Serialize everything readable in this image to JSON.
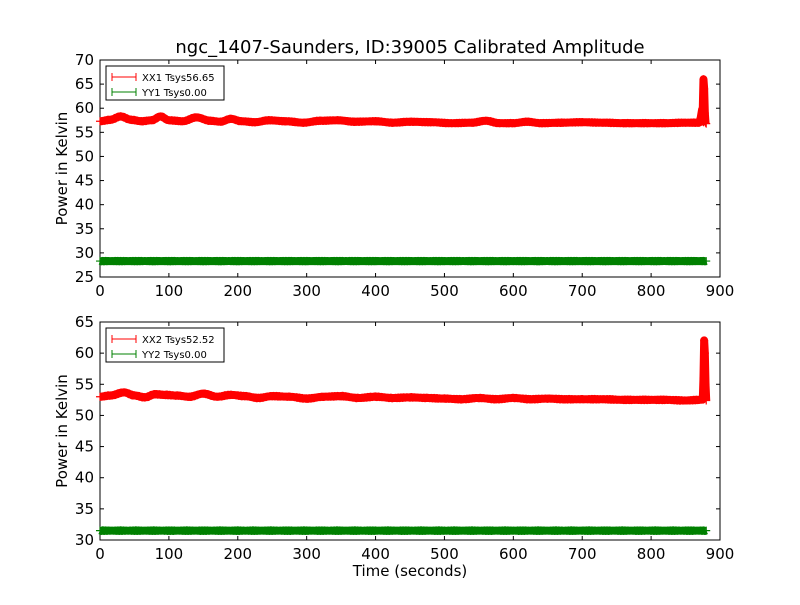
{
  "figure": {
    "title": "ngc_1407-Saunders, ID:39005 Calibrated Amplitude",
    "xlabel": "Time (seconds)"
  },
  "chart_data": [
    {
      "type": "line",
      "title": "ngc_1407-Saunders, ID:39005 Calibrated Amplitude",
      "xlabel": "",
      "ylabel": "Power in Kelvin",
      "xlim": [
        0,
        900
      ],
      "ylim": [
        25,
        70
      ],
      "xticks": [
        0,
        100,
        200,
        300,
        400,
        500,
        600,
        700,
        800,
        900
      ],
      "yticks": [
        25,
        30,
        35,
        40,
        45,
        50,
        55,
        60,
        65,
        70
      ],
      "grid": false,
      "legend_position": "top-left",
      "series": [
        {
          "name": "XX1 Tsys56.65",
          "color": "#ff0000",
          "marker": "+",
          "x": [
            0,
            15,
            30,
            45,
            60,
            75,
            88,
            100,
            120,
            140,
            160,
            175,
            190,
            205,
            225,
            245,
            270,
            295,
            320,
            345,
            370,
            400,
            425,
            450,
            480,
            510,
            540,
            560,
            580,
            600,
            620,
            640,
            670,
            700,
            730,
            760,
            790,
            820,
            850,
            870,
            875,
            876,
            877,
            878,
            879,
            880
          ],
          "y": [
            57.3,
            57.6,
            58.3,
            57.6,
            57.3,
            57.5,
            58.3,
            57.5,
            57.3,
            58.1,
            57.4,
            57.2,
            57.8,
            57.3,
            57.1,
            57.5,
            57.3,
            57.0,
            57.4,
            57.5,
            57.2,
            57.3,
            57.0,
            57.2,
            57.1,
            56.9,
            57.0,
            57.4,
            56.9,
            56.9,
            57.2,
            56.9,
            57.0,
            57.1,
            57.0,
            56.9,
            56.9,
            56.9,
            57.0,
            57.0,
            60.0,
            66.0,
            64.0,
            59.0,
            57.0,
            56.8
          ]
        },
        {
          "name": "YY1 Tsys0.00",
          "color": "#008000",
          "marker": "+",
          "x": [
            0,
            100,
            200,
            300,
            400,
            500,
            600,
            700,
            800,
            880
          ],
          "y": [
            28.3,
            28.3,
            28.3,
            28.3,
            28.3,
            28.3,
            28.3,
            28.3,
            28.3,
            28.3
          ]
        }
      ]
    },
    {
      "type": "line",
      "title": "",
      "xlabel": "Time (seconds)",
      "ylabel": "Power in Kelvin",
      "xlim": [
        0,
        900
      ],
      "ylim": [
        30,
        65
      ],
      "xticks": [
        0,
        100,
        200,
        300,
        400,
        500,
        600,
        700,
        800,
        900
      ],
      "yticks": [
        30,
        35,
        40,
        45,
        50,
        55,
        60,
        65
      ],
      "grid": false,
      "legend_position": "top-left",
      "series": [
        {
          "name": "XX2 Tsys52.52",
          "color": "#ff0000",
          "marker": "+",
          "x": [
            0,
            15,
            35,
            50,
            65,
            80,
            95,
            110,
            130,
            150,
            170,
            190,
            210,
            230,
            250,
            275,
            300,
            325,
            350,
            375,
            400,
            425,
            450,
            475,
            500,
            525,
            550,
            575,
            600,
            625,
            650,
            675,
            700,
            730,
            760,
            790,
            820,
            850,
            870,
            875,
            876,
            877,
            878,
            879,
            880
          ],
          "y": [
            53.0,
            53.2,
            53.7,
            53.2,
            52.9,
            53.4,
            53.3,
            53.2,
            53.0,
            53.5,
            53.0,
            53.3,
            53.1,
            52.8,
            53.1,
            53.0,
            52.7,
            53.0,
            53.1,
            52.8,
            53.0,
            52.8,
            52.9,
            52.8,
            52.7,
            52.6,
            52.8,
            52.6,
            52.8,
            52.6,
            52.7,
            52.6,
            52.6,
            52.6,
            52.5,
            52.5,
            52.5,
            52.4,
            52.5,
            52.6,
            56.0,
            62.0,
            60.0,
            55.0,
            52.4
          ]
        },
        {
          "name": "YY2 Tsys0.00",
          "color": "#008000",
          "marker": "+",
          "x": [
            0,
            100,
            200,
            300,
            400,
            500,
            600,
            700,
            800,
            880
          ],
          "y": [
            31.5,
            31.5,
            31.5,
            31.5,
            31.5,
            31.5,
            31.5,
            31.5,
            31.5,
            31.5
          ]
        }
      ]
    }
  ]
}
